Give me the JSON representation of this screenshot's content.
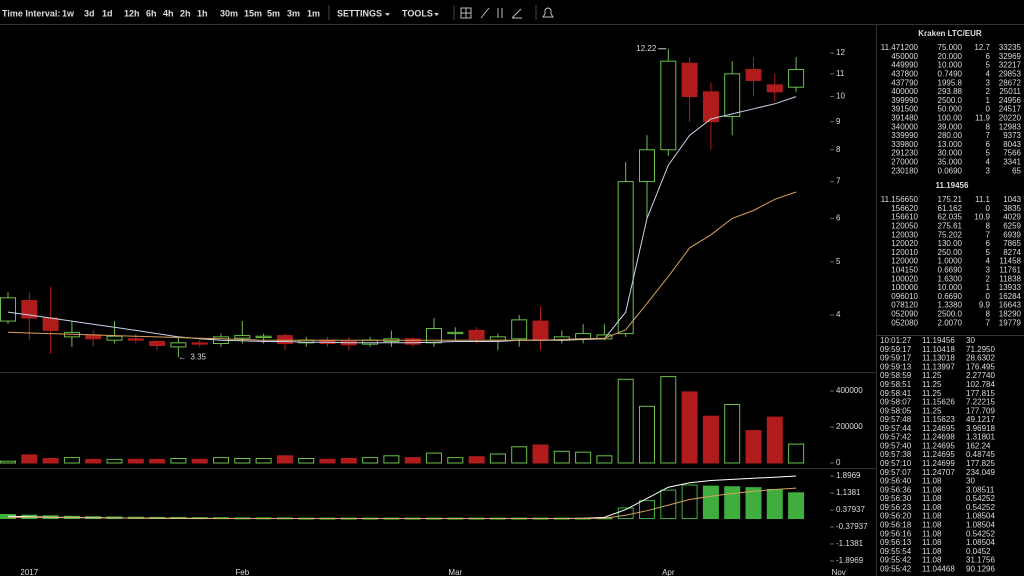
{
  "toolbar": {
    "label": "Time Interval:",
    "intervals": [
      "1w",
      "3d",
      "1d",
      "12h",
      "6h",
      "4h",
      "2h",
      "1h",
      "30m",
      "15m",
      "5m",
      "3m",
      "1m"
    ],
    "active": "3d",
    "menus": [
      "SETTINGS",
      "TOOLS"
    ]
  },
  "chart_data": [
    {
      "type": "candlestick",
      "categories": [
        null,
        "2017",
        null,
        null,
        null,
        null,
        null,
        null,
        null,
        null,
        null,
        "Feb",
        null,
        null,
        null,
        null,
        null,
        null,
        null,
        null,
        null,
        "Mar",
        null,
        null,
        null,
        null,
        null,
        null,
        null,
        null,
        null,
        "Apr",
        null,
        null,
        null,
        null,
        null,
        null,
        null,
        "Nov"
      ],
      "open": [
        3.9,
        4.25,
        3.95,
        3.65,
        3.68,
        3.6,
        3.62,
        3.58,
        3.5,
        3.56,
        3.55,
        3.63,
        3.64,
        3.67,
        3.56,
        3.6,
        3.58,
        3.54,
        3.58,
        3.62,
        3.56,
        3.7,
        3.75,
        3.6,
        3.62,
        3.9,
        3.6,
        3.62,
        3.62,
        3.7,
        7.0,
        8.0,
        11.5,
        10.2,
        9.2,
        11.2,
        10.5,
        10.4,
        null,
        null
      ],
      "high": [
        4.4,
        4.4,
        4.5,
        3.9,
        3.75,
        3.9,
        3.7,
        3.6,
        3.65,
        3.6,
        3.7,
        3.9,
        3.7,
        3.7,
        3.65,
        3.65,
        3.65,
        3.65,
        3.75,
        3.65,
        3.95,
        3.8,
        3.8,
        3.7,
        4.0,
        4.15,
        3.75,
        3.85,
        3.85,
        7.6,
        8.5,
        12.22,
        11.8,
        10.6,
        11.6,
        11.8,
        11.0,
        11.8,
        null,
        null
      ],
      "low": [
        3.85,
        3.6,
        3.4,
        3.5,
        3.5,
        3.55,
        3.55,
        3.45,
        3.35,
        3.5,
        3.5,
        3.55,
        3.55,
        3.45,
        3.5,
        3.5,
        3.45,
        3.5,
        3.5,
        3.5,
        3.5,
        3.6,
        3.55,
        3.45,
        3.5,
        3.45,
        3.55,
        3.55,
        3.6,
        3.65,
        6.0,
        7.8,
        9.0,
        8.0,
        8.5,
        10.0,
        9.8,
        10.2,
        null,
        null
      ],
      "close": [
        4.3,
        3.95,
        3.75,
        3.72,
        3.62,
        3.66,
        3.6,
        3.52,
        3.56,
        3.54,
        3.65,
        3.67,
        3.66,
        3.55,
        3.6,
        3.55,
        3.53,
        3.6,
        3.62,
        3.54,
        3.78,
        3.72,
        3.62,
        3.65,
        3.92,
        3.6,
        3.65,
        3.7,
        3.68,
        7.0,
        8.0,
        11.6,
        10.0,
        9.0,
        11.0,
        10.7,
        10.2,
        11.2,
        null,
        null
      ],
      "up_color": "#6cc04a",
      "down_color": "#b01c1c",
      "overlays": [
        {
          "color": "#c8d4ea",
          "values": [
            4.05,
            4.0,
            3.95,
            3.9,
            3.85,
            3.8,
            3.75,
            3.7,
            3.65,
            3.62,
            3.6,
            3.59,
            3.58,
            3.58,
            3.57,
            3.57,
            3.56,
            3.56,
            3.56,
            3.56,
            3.57,
            3.58,
            3.58,
            3.58,
            3.6,
            3.6,
            3.6,
            3.61,
            3.62,
            4.05,
            6.0,
            7.5,
            8.5,
            9.1,
            9.3,
            9.5,
            9.7,
            10.0,
            null,
            null
          ]
        },
        {
          "color": "#d9a25b",
          "values": [
            3.72,
            3.71,
            3.7,
            3.69,
            3.68,
            3.67,
            3.66,
            3.65,
            3.64,
            3.63,
            3.62,
            3.61,
            3.6,
            3.6,
            3.6,
            3.6,
            3.6,
            3.6,
            3.6,
            3.6,
            3.6,
            3.6,
            3.6,
            3.6,
            3.6,
            3.6,
            3.61,
            3.62,
            3.63,
            3.76,
            4.2,
            4.7,
            5.3,
            5.6,
            6.0,
            6.2,
            6.5,
            6.7,
            null,
            null
          ]
        }
      ],
      "ylim": [
        3.15,
        13.5
      ],
      "log_scale": true,
      "yticks": [
        4,
        5,
        6,
        7,
        8,
        9,
        10,
        11,
        12
      ]
    },
    {
      "type": "volume",
      "values": [
        10000,
        45000,
        25000,
        30000,
        20000,
        20000,
        20000,
        20000,
        25000,
        20000,
        30000,
        25000,
        25000,
        40000,
        25000,
        20000,
        25000,
        30000,
        40000,
        30000,
        55000,
        30000,
        35000,
        50000,
        90000,
        100000,
        65000,
        60000,
        40000,
        465000,
        315000,
        480000,
        395000,
        260000,
        325000,
        180000,
        255000,
        105000,
        null,
        null
      ],
      "ylim": [
        0,
        500000
      ],
      "yticks": [
        0,
        200000,
        400000
      ]
    },
    {
      "type": "macd",
      "histogram": [
        0.18,
        0.15,
        0.12,
        0.1,
        0.08,
        0.07,
        0.06,
        0.05,
        0.05,
        0.04,
        0.04,
        0.03,
        0.03,
        0.03,
        0.02,
        0.02,
        0.02,
        0.02,
        0.02,
        0.02,
        0.02,
        0.02,
        0.02,
        0.02,
        0.02,
        0.02,
        0.02,
        0.02,
        0.03,
        0.47,
        0.8,
        1.27,
        1.5,
        1.45,
        1.42,
        1.38,
        1.3,
        1.15,
        null,
        null
      ],
      "histogram_color": "#3fae3f",
      "series": [
        {
          "color": "#ffffff",
          "values": [
            0.1,
            0.08,
            0.06,
            0.05,
            0.04,
            0.03,
            0.02,
            0.01,
            0,
            0,
            0,
            0,
            0,
            0,
            0,
            0,
            0,
            0,
            0,
            0,
            0,
            0,
            0,
            0,
            0,
            0,
            0,
            0.01,
            0.05,
            0.4,
            0.9,
            1.4,
            1.6,
            1.7,
            1.75,
            1.8,
            1.85,
            1.9,
            null,
            null
          ]
        },
        {
          "color": "#d9a25b",
          "values": [
            0.05,
            0.05,
            0.04,
            0.04,
            0.03,
            0.03,
            0.02,
            0.02,
            0.01,
            0.01,
            0,
            0,
            0,
            0,
            0,
            0,
            0,
            0,
            0,
            0,
            0,
            0,
            0,
            0,
            0,
            0,
            0,
            0,
            0.01,
            0.15,
            0.35,
            0.6,
            0.85,
            1.0,
            1.12,
            1.22,
            1.3,
            1.36,
            null,
            null
          ]
        }
      ],
      "ylim": [
        -2.57,
        2.17
      ],
      "yticks": [
        1.8969,
        1.1381,
        0.37937,
        -0.37937,
        -1.1381,
        -1.8969
      ]
    }
  ],
  "order_book": {
    "title": "Kraken LTC/EUR",
    "asks": [
      [
        "11.471200",
        "75.000",
        "12.7",
        "33235"
      ],
      [
        "450000",
        "20.000",
        "6",
        "32969"
      ],
      [
        "449990",
        "10.000",
        "5",
        "32217"
      ],
      [
        "437800",
        "0.7490",
        "4",
        "29853"
      ],
      [
        "437790",
        "1995.8",
        "3",
        "28672"
      ],
      [
        "400000",
        "293.88",
        "2",
        "25011"
      ],
      [
        "399990",
        "2500.0",
        "1",
        "24956"
      ],
      [
        "391500",
        "50.000",
        "0",
        "24517"
      ],
      [
        "391480",
        "100.00",
        "11.9",
        "20220"
      ],
      [
        "340000",
        "39.000",
        "8",
        "12983"
      ],
      [
        "339990",
        "280.00",
        "7",
        "9373"
      ],
      [
        "339800",
        "13.000",
        "6",
        "8043"
      ],
      [
        "291230",
        "30.000",
        "5",
        "7566"
      ],
      [
        "270000",
        "35.000",
        "4",
        "3341"
      ],
      [
        "230180",
        "0.0690",
        "3",
        "65"
      ]
    ],
    "last": "11.19456",
    "bids": [
      [
        "11.156650",
        "175.21",
        "11.1",
        "1043"
      ],
      [
        "156620",
        "61.162",
        "0",
        "3835"
      ],
      [
        "156610",
        "62.035",
        "10.9",
        "4029"
      ],
      [
        "120050",
        "275.61",
        "8",
        "6259"
      ],
      [
        "120030",
        "75.202",
        "7",
        "6939"
      ],
      [
        "120020",
        "130.00",
        "6",
        "7865"
      ],
      [
        "120010",
        "250.00",
        "5",
        "8274"
      ],
      [
        "120000",
        "1.0000",
        "4",
        "11458"
      ],
      [
        "104150",
        "0.6690",
        "3",
        "11761"
      ],
      [
        "100020",
        "1.6300",
        "2",
        "11838"
      ],
      [
        "100000",
        "10.000",
        "1",
        "13933"
      ],
      [
        "096010",
        "0.6690",
        "0",
        "16284"
      ],
      [
        "078120",
        "1.3380",
        "9.9",
        "16643"
      ],
      [
        "052090",
        "2500.0",
        "8",
        "18290"
      ],
      [
        "052080",
        "2.0070",
        "7",
        "19779"
      ]
    ]
  },
  "trades": [
    {
      "time": "10:01:27",
      "price": "11.19456",
      "amount": "30",
      "color": "#4caf50"
    },
    {
      "time": "09:59:17",
      "price": "11.10418",
      "amount": "71.2950",
      "color": "#4caf50"
    },
    {
      "time": "09:59:17",
      "price": "11.13018",
      "amount": "28.6302",
      "color": "#e53935"
    },
    {
      "time": "09:59:13",
      "price": "11.13997",
      "amount": "176.495",
      "color": "#4caf50"
    },
    {
      "time": "09:58:59",
      "price": "11.25",
      "amount": "2.27740",
      "color": "#4caf50"
    },
    {
      "time": "09:58:51",
      "price": "11.25",
      "amount": "102.784",
      "color": "#4caf50"
    },
    {
      "time": "09:58:41",
      "price": "11.25",
      "amount": "177.815",
      "color": "#4caf50"
    },
    {
      "time": "09:58:07",
      "price": "11.15626",
      "amount": "7.22215",
      "color": "#e53935"
    },
    {
      "time": "09:58:05",
      "price": "11.25",
      "amount": "177.709",
      "color": "#4caf50"
    },
    {
      "time": "09:57:48",
      "price": "11.15623",
      "amount": "49.1217",
      "color": "#e53935"
    },
    {
      "time": "09:57:44",
      "price": "11.24695",
      "amount": "3.96918",
      "color": "#e53935"
    },
    {
      "time": "09:57:42",
      "price": "11.24698",
      "amount": "1.31801",
      "color": "#4caf50"
    },
    {
      "time": "09:57:40",
      "price": "11.24695",
      "amount": "162.24",
      "color": "#4caf50"
    },
    {
      "time": "09:57:38",
      "price": "11.24695",
      "amount": "0.48745",
      "color": "#4caf50"
    },
    {
      "time": "09:57:10",
      "price": "11.24699",
      "amount": "177.825",
      "color": "#4caf50"
    },
    {
      "time": "09:57:07",
      "price": "11.24707",
      "amount": "234.049",
      "color": "#e53935"
    },
    {
      "time": "09:56:40",
      "price": "11.08",
      "amount": "30",
      "color": "#4caf50"
    },
    {
      "time": "09:56:36",
      "price": "11.08",
      "amount": "3.08511",
      "color": "#4caf50"
    },
    {
      "time": "09:56:30",
      "price": "11.08",
      "amount": "0.54252",
      "color": "#4caf50"
    },
    {
      "time": "09:56:23",
      "price": "11.08",
      "amount": "0.54252",
      "color": "#4caf50"
    },
    {
      "time": "09:56:20",
      "price": "11.08",
      "amount": "1.08504",
      "color": "#4caf50"
    },
    {
      "time": "09:56:18",
      "price": "11.08",
      "amount": "1.08504",
      "color": "#4caf50"
    },
    {
      "time": "09:56:16",
      "price": "11.08",
      "amount": "0.54252",
      "color": "#4caf50"
    },
    {
      "time": "09:56:13",
      "price": "11.08",
      "amount": "1.08504",
      "color": "#4caf50"
    },
    {
      "time": "09:55:54",
      "price": "11.08",
      "amount": "0.0452",
      "color": "#4caf50"
    },
    {
      "time": "09:55:42",
      "price": "11.08",
      "amount": "31.1756",
      "color": "#4caf50"
    },
    {
      "time": "09:55:42",
      "price": "11.04468",
      "amount": "90.1296",
      "color": "#e53935"
    }
  ]
}
